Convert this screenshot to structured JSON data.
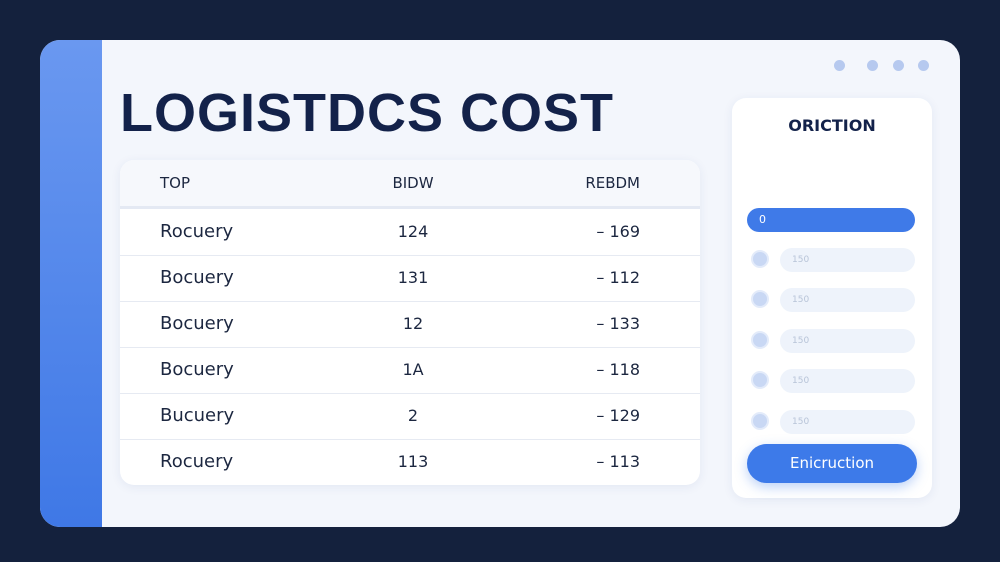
{
  "header": {
    "title": "LOGISTDCS COST"
  },
  "table": {
    "columns": [
      "TOP",
      "BIDW",
      "REBDM"
    ],
    "rows": [
      [
        "Rocuery",
        "124",
        "– 169"
      ],
      [
        "Bocuery",
        "131",
        "– 112"
      ],
      [
        "Bocuery",
        "12",
        "– 133"
      ],
      [
        "Bocuery",
        "1A",
        "– 118"
      ],
      [
        "Bucuery",
        "2",
        "– 129"
      ],
      [
        "Rocuery",
        "113",
        "– 113"
      ]
    ]
  },
  "panel": {
    "title": "ORICTION",
    "options": [
      "0",
      "150",
      "150",
      "150",
      "150",
      "150"
    ],
    "button": "Enicruction"
  }
}
